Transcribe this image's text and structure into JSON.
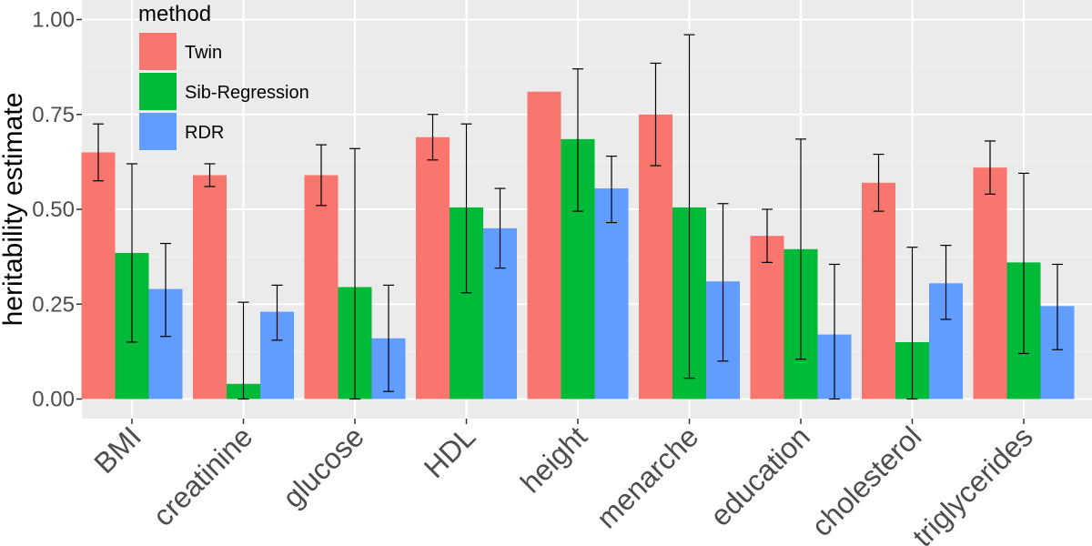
{
  "chart_data": {
    "type": "bar",
    "ylabel": "heritability estimate",
    "xlabel": "",
    "ylim": [
      0,
      1.0
    ],
    "yticks": [
      "0.00",
      "0.25",
      "0.50",
      "0.75",
      "1.00"
    ],
    "ytick_values": [
      0,
      0.25,
      0.5,
      0.75,
      1.0
    ],
    "grid": true,
    "legend": {
      "title": "method",
      "position": "top-left"
    },
    "categories": [
      "BMI",
      "creatinine",
      "glucose",
      "HDL",
      "height",
      "menarche",
      "education",
      "cholesterol",
      "triglycerides"
    ],
    "series": [
      {
        "name": "Twin",
        "color": "#F8766D",
        "values": [
          0.65,
          0.59,
          0.59,
          0.69,
          0.81,
          0.75,
          0.43,
          0.57,
          0.61
        ],
        "err_low": [
          0.575,
          0.56,
          0.51,
          0.63,
          null,
          0.615,
          0.36,
          0.495,
          0.54
        ],
        "err_high": [
          0.725,
          0.62,
          0.67,
          0.75,
          null,
          0.885,
          0.5,
          0.645,
          0.68
        ]
      },
      {
        "name": "Sib-Regression",
        "color": "#00BA38",
        "values": [
          0.385,
          0.04,
          0.295,
          0.505,
          0.685,
          0.505,
          0.395,
          0.15,
          0.36
        ],
        "err_low": [
          0.15,
          0.0,
          0.0,
          0.28,
          0.495,
          0.055,
          0.105,
          0.0,
          0.12
        ],
        "err_high": [
          0.62,
          0.255,
          0.66,
          0.725,
          0.87,
          0.96,
          0.685,
          0.4,
          0.595
        ]
      },
      {
        "name": "RDR",
        "color": "#619CFF",
        "values": [
          0.29,
          0.23,
          0.16,
          0.45,
          0.555,
          0.31,
          0.17,
          0.305,
          0.245
        ],
        "err_low": [
          0.165,
          0.155,
          0.02,
          0.345,
          0.465,
          0.1,
          0.0,
          0.21,
          0.13
        ],
        "err_high": [
          0.41,
          0.3,
          0.3,
          0.555,
          0.64,
          0.515,
          0.355,
          0.405,
          0.355
        ]
      }
    ]
  }
}
